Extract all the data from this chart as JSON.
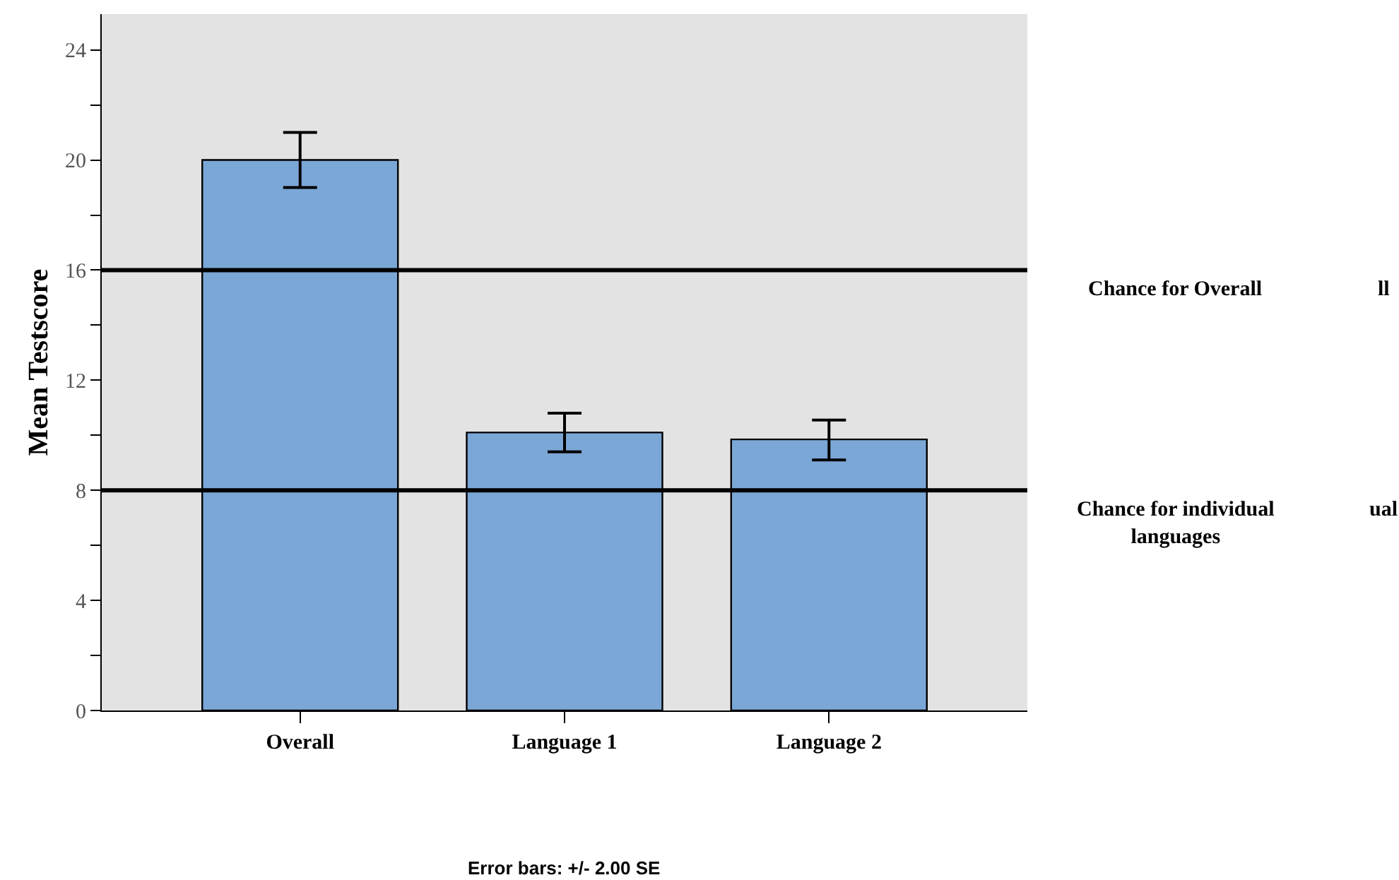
{
  "chart_data": {
    "type": "bar",
    "ylabel": "Mean Testscore",
    "categories": [
      "Overall",
      "Language 1",
      "Language 2"
    ],
    "values": [
      20.0,
      10.1,
      9.85
    ],
    "errors": [
      [
        19.0,
        21.0
      ],
      [
        9.4,
        10.8
      ],
      [
        9.1,
        10.55
      ]
    ],
    "color": "#7ba7d6",
    "ylim": [
      0,
      25.3
    ],
    "yticks": [
      0,
      {
        "value": 2,
        "label": null
      },
      4,
      {
        "value": 6,
        "label": null
      },
      8,
      {
        "value": 10,
        "label": null
      },
      12,
      {
        "value": 14,
        "label": null
      },
      16,
      {
        "value": 18,
        "label": null
      },
      20,
      {
        "value": 22,
        "label": null
      },
      24
    ],
    "grid": false,
    "ref_lines": [
      {
        "axis": "y",
        "value": 16,
        "label": "Chance for Overall",
        "color": "#000000"
      },
      {
        "axis": "y",
        "value": 8,
        "label": "Chance for individual\nlanguages",
        "color": "#000000"
      }
    ],
    "annotations": [
      "Error bars: +/- 2.00 SE",
      "ll",
      "ual"
    ]
  }
}
